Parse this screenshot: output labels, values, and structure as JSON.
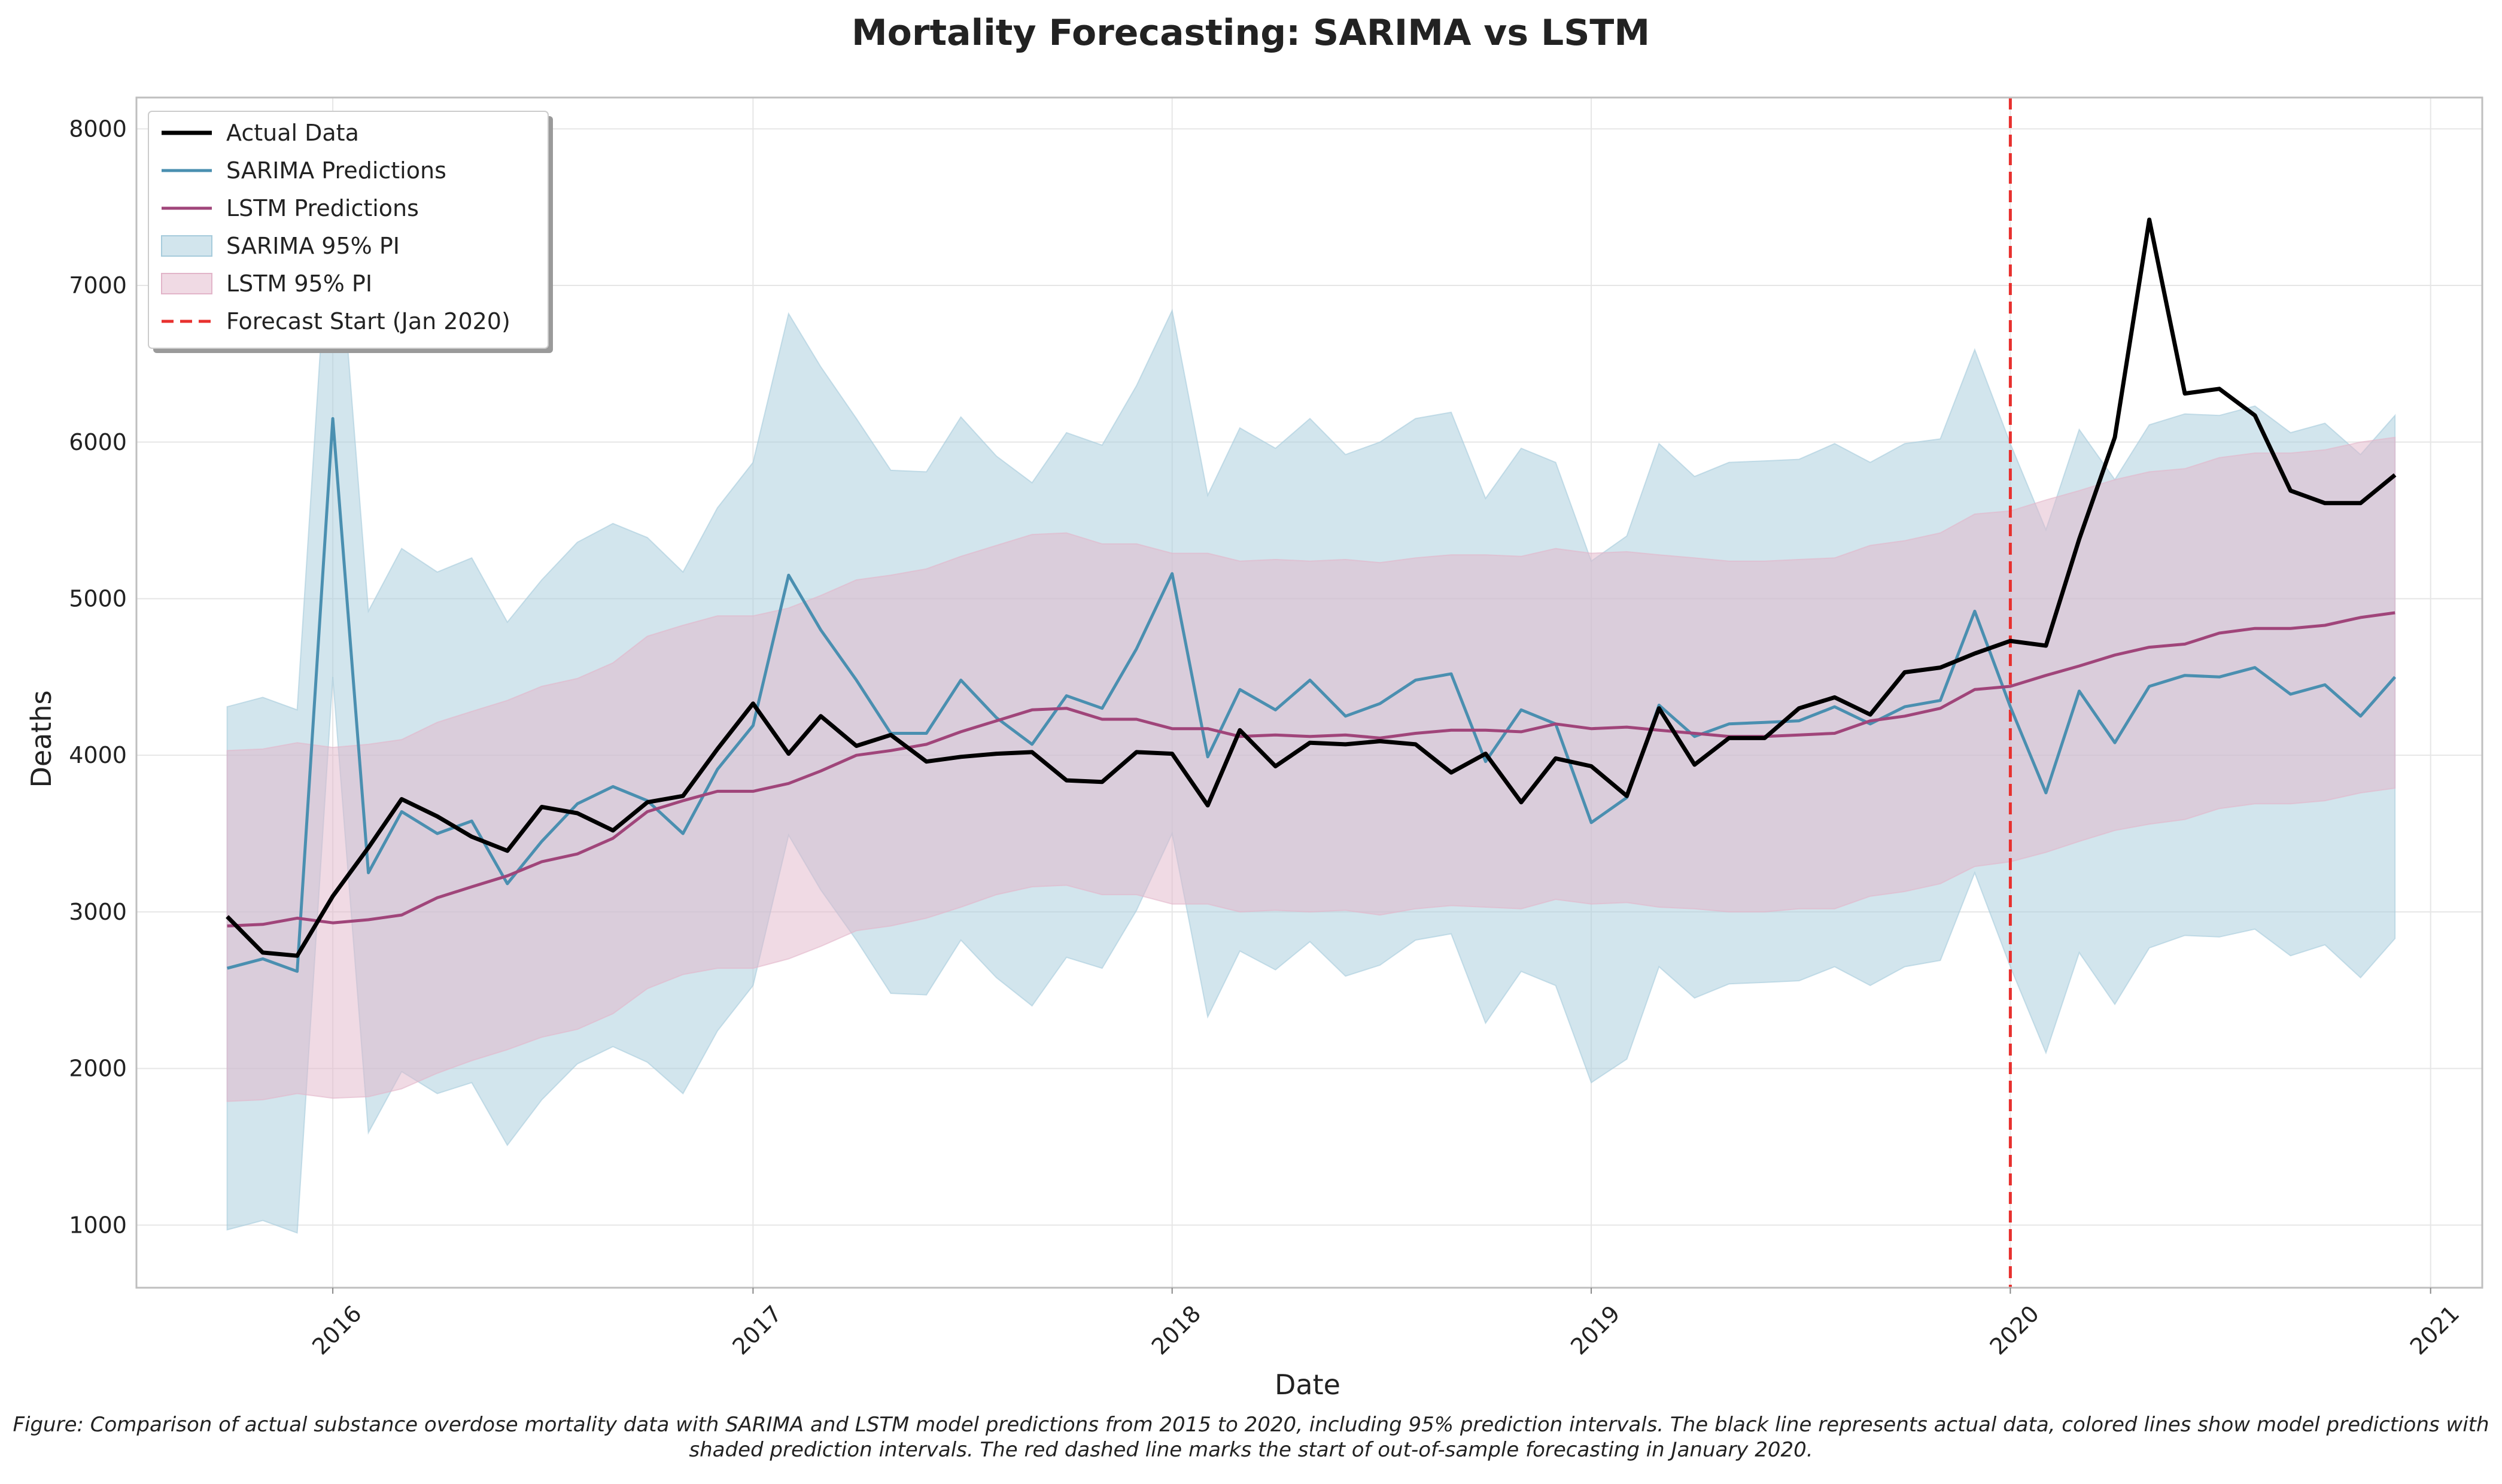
{
  "chart_data": {
    "type": "line",
    "title": "Mortality Forecasting: SARIMA vs LSTM",
    "xlabel": "Date",
    "ylabel": "Deaths",
    "xlim": [
      "2015-07-14",
      "2021-02-15"
    ],
    "ylim": [
      600,
      8200
    ],
    "x_ticks": [
      "2016-01-01",
      "2017-01-01",
      "2018-01-01",
      "2019-01-01",
      "2020-01-01",
      "2021-01-01"
    ],
    "x_tick_labels": [
      "2016",
      "2017",
      "2018",
      "2019",
      "2020",
      "2021"
    ],
    "y_ticks": [
      1000,
      2000,
      3000,
      4000,
      5000,
      6000,
      7000,
      8000
    ],
    "y_tick_labels": [
      "1000",
      "2000",
      "3000",
      "4000",
      "5000",
      "6000",
      "7000",
      "8000"
    ],
    "grid": true,
    "legend_position": "top-left",
    "x": [
      "2015-10",
      "2015-11",
      "2015-12",
      "2016-01",
      "2016-02",
      "2016-03",
      "2016-04",
      "2016-05",
      "2016-06",
      "2016-07",
      "2016-08",
      "2016-09",
      "2016-10",
      "2016-11",
      "2016-12",
      "2017-01",
      "2017-02",
      "2017-03",
      "2017-04",
      "2017-05",
      "2017-06",
      "2017-07",
      "2017-08",
      "2017-09",
      "2017-10",
      "2017-11",
      "2017-12",
      "2018-01",
      "2018-02",
      "2018-03",
      "2018-04",
      "2018-05",
      "2018-06",
      "2018-07",
      "2018-08",
      "2018-09",
      "2018-10",
      "2018-11",
      "2018-12",
      "2019-01",
      "2019-02",
      "2019-03",
      "2019-04",
      "2019-05",
      "2019-06",
      "2019-07",
      "2019-08",
      "2019-09",
      "2019-10",
      "2019-11",
      "2019-12",
      "2020-01",
      "2020-02",
      "2020-03",
      "2020-04",
      "2020-05",
      "2020-06",
      "2020-07",
      "2020-08",
      "2020-09",
      "2020-10",
      "2020-11",
      "2020-12"
    ],
    "series": [
      {
        "name": "Actual Data",
        "color": "#000000",
        "kind": "line",
        "values": [
          2970,
          2740,
          2720,
          3100,
          3410,
          3720,
          3610,
          3480,
          3390,
          3670,
          3630,
          3520,
          3700,
          3740,
          4040,
          4330,
          4010,
          4250,
          4060,
          4130,
          3960,
          3990,
          4010,
          4020,
          3840,
          3830,
          4020,
          4010,
          3680,
          4160,
          3930,
          4080,
          4070,
          4090,
          4070,
          3890,
          4010,
          3700,
          3980,
          3930,
          3740,
          4300,
          3940,
          4110,
          4110,
          4300,
          4370,
          4260,
          4530,
          4560,
          4650,
          4730,
          4700,
          5380,
          6030,
          7420,
          6310,
          6340,
          6170,
          5690,
          5610,
          5610,
          5790
        ]
      },
      {
        "name": "SARIMA Predictions",
        "color": "#4a8fb0",
        "kind": "line",
        "values": [
          2640,
          2700,
          2620,
          6150,
          3250,
          3640,
          3500,
          3580,
          3180,
          3450,
          3690,
          3800,
          3710,
          3500,
          3910,
          4190,
          5150,
          4800,
          4480,
          4140,
          4140,
          4480,
          4240,
          4070,
          4380,
          4300,
          4680,
          5160,
          3990,
          4420,
          4290,
          4480,
          4250,
          4330,
          4480,
          4520,
          3960,
          4290,
          4200,
          3570,
          3730,
          4320,
          4120,
          4200,
          4210,
          4220,
          4310,
          4200,
          4310,
          4350,
          4920,
          4310,
          3760,
          4410,
          4080,
          4440,
          4510,
          4500,
          4560,
          4390,
          4450,
          4250,
          4500
        ]
      },
      {
        "name": "LSTM Predictions",
        "color": "#a0457a",
        "kind": "line",
        "values": [
          2910,
          2920,
          2960,
          2930,
          2950,
          2980,
          3090,
          3160,
          3230,
          3320,
          3370,
          3470,
          3640,
          3710,
          3770,
          3770,
          3820,
          3900,
          4000,
          4030,
          4070,
          4150,
          4220,
          4290,
          4300,
          4230,
          4230,
          4170,
          4170,
          4120,
          4130,
          4120,
          4130,
          4110,
          4140,
          4160,
          4160,
          4150,
          4200,
          4170,
          4180,
          4160,
          4140,
          4120,
          4120,
          4130,
          4140,
          4220,
          4250,
          4300,
          4420,
          4440,
          4510,
          4570,
          4640,
          4690,
          4710,
          4780,
          4810,
          4810,
          4830,
          4880,
          4910
        ]
      },
      {
        "name": "SARIMA 95% PI",
        "color": "#a6cbdc",
        "kind": "band",
        "lower": [
          970,
          1030,
          950,
          4500,
          1590,
          1980,
          1840,
          1910,
          1510,
          1800,
          2030,
          2140,
          2040,
          1840,
          2240,
          2530,
          3490,
          3140,
          2820,
          2480,
          2470,
          2820,
          2580,
          2400,
          2710,
          2640,
          3010,
          3500,
          2330,
          2750,
          2630,
          2810,
          2590,
          2660,
          2820,
          2860,
          2290,
          2620,
          2530,
          1910,
          2060,
          2650,
          2450,
          2540,
          2550,
          2560,
          2650,
          2530,
          2650,
          2690,
          3250,
          2650,
          2100,
          2740,
          2410,
          2770,
          2850,
          2840,
          2890,
          2720,
          2790,
          2580,
          2830
        ],
        "upper": [
          4310,
          4370,
          4290,
          7820,
          4920,
          5320,
          5170,
          5260,
          4850,
          5120,
          5360,
          5480,
          5390,
          5170,
          5580,
          5870,
          6820,
          6480,
          6150,
          5820,
          5810,
          6160,
          5910,
          5740,
          6060,
          5980,
          6360,
          6840,
          5660,
          6090,
          5960,
          6150,
          5920,
          6000,
          6150,
          6190,
          5640,
          5960,
          5870,
          5240,
          5400,
          5990,
          5780,
          5870,
          5880,
          5890,
          5990,
          5870,
          5990,
          6020,
          6590,
          5990,
          5440,
          6080,
          5760,
          6110,
          6180,
          6170,
          6230,
          6060,
          6120,
          5920,
          6170
        ]
      },
      {
        "name": "LSTM 95% PI",
        "color": "#e2b5c9",
        "kind": "band",
        "lower": [
          1790,
          1800,
          1840,
          1810,
          1820,
          1870,
          1970,
          2050,
          2120,
          2200,
          2250,
          2350,
          2510,
          2600,
          2640,
          2640,
          2700,
          2780,
          2880,
          2910,
          2960,
          3030,
          3110,
          3160,
          3170,
          3110,
          3110,
          3050,
          3050,
          3000,
          3010,
          3000,
          3010,
          2980,
          3020,
          3040,
          3030,
          3020,
          3080,
          3050,
          3060,
          3030,
          3020,
          3000,
          3000,
          3020,
          3020,
          3100,
          3130,
          3180,
          3290,
          3320,
          3380,
          3450,
          3520,
          3560,
          3590,
          3660,
          3690,
          3690,
          3710,
          3760,
          3790
        ],
        "upper": [
          4030,
          4040,
          4080,
          4050,
          4070,
          4100,
          4210,
          4280,
          4350,
          4440,
          4490,
          4590,
          4760,
          4830,
          4890,
          4890,
          4940,
          5020,
          5120,
          5150,
          5190,
          5270,
          5340,
          5410,
          5420,
          5350,
          5350,
          5290,
          5290,
          5240,
          5250,
          5240,
          5250,
          5230,
          5260,
          5280,
          5280,
          5270,
          5320,
          5290,
          5300,
          5280,
          5260,
          5240,
          5240,
          5250,
          5260,
          5340,
          5370,
          5420,
          5540,
          5560,
          5630,
          5690,
          5760,
          5810,
          5830,
          5900,
          5930,
          5930,
          5950,
          6000,
          6030
        ]
      },
      {
        "name": "Forecast Start (Jan 2020)",
        "color": "#e8302e",
        "kind": "vline",
        "x": "2020-01-01"
      }
    ],
    "caption": "Figure: Comparison of actual substance overdose mortality data with SARIMA and LSTM model predictions from 2015 to 2020, including 95% prediction intervals. The black line represents actual data, colored lines show model predictions with shaded prediction intervals. The red dashed line marks the start of out-of-sample forecasting in January 2020."
  }
}
